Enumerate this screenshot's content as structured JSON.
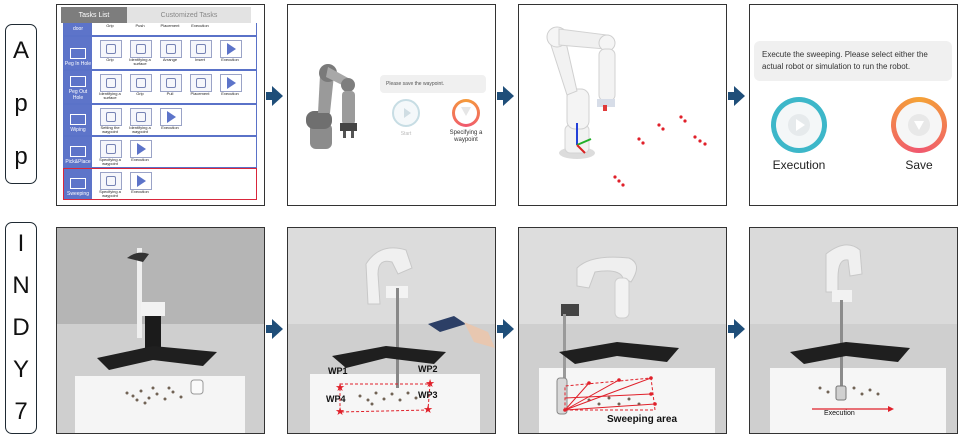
{
  "row_labels": {
    "app": [
      "A",
      "p",
      "p"
    ],
    "robot": [
      "I",
      "N",
      "D",
      "Y",
      "7"
    ]
  },
  "task_list": {
    "tab_active": "Tasks List",
    "tab_inactive": "Customized Tasks",
    "top_cut_head": "door",
    "top_cut_steps": [
      "Grip",
      "Push",
      "Placement",
      "Execution"
    ],
    "rows": [
      {
        "name": "Peg In Hole",
        "steps": [
          "Grip",
          "Identifying a surface",
          "Arrange",
          "Insert",
          "Execution"
        ]
      },
      {
        "name": "Peg Out Hole",
        "steps": [
          "Identifying a surface",
          "Grip",
          "Pull",
          "Placement",
          "Execution"
        ]
      },
      {
        "name": "Wiping",
        "steps": [
          "Setting the waypoint",
          "Identifying a waypoint",
          "Execution"
        ]
      },
      {
        "name": "Pick&Place",
        "steps": [
          "Specifying a waypoint",
          "Execution"
        ]
      },
      {
        "name": "Sweeping",
        "steps": [
          "Specifying a waypoint",
          "Execution"
        ]
      }
    ]
  },
  "waypoint_panel": {
    "prompt": "Please save the waypoint.",
    "left_label": "Start",
    "right_label_1": "Specifying a",
    "right_label_2": "waypoint"
  },
  "execute_panel": {
    "prompt_1": "Execute the sweeping. Please select either the",
    "prompt_2": "actual robot or simulation to run the robot.",
    "execution_label": "Execution",
    "save_label": "Save"
  },
  "photo_labels": {
    "wp1": "WP1",
    "wp2": "WP2",
    "wp3": "WP3",
    "wp4": "WP4",
    "sweeping_area": "Sweeping area",
    "execution": "Execution"
  },
  "colors": {
    "accent_blue": "#5d74c9",
    "arrow": "#1f4e79",
    "waypoint_red": "#e0202a",
    "teal_ring": "#3db7c9",
    "orange_ring": "#f4a236"
  }
}
